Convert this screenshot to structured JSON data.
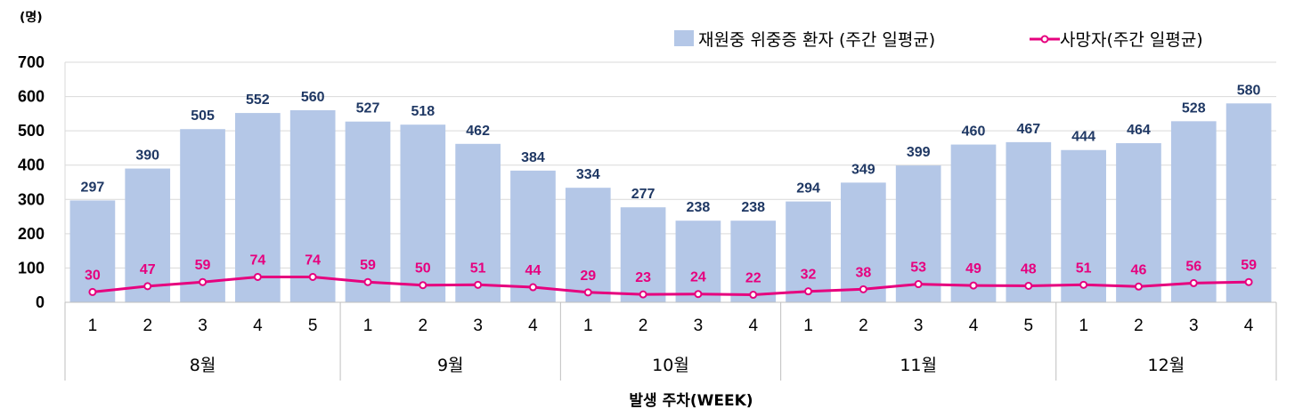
{
  "chart_data": {
    "type": "bar",
    "unit_label": "(명)",
    "xlabel": "발생 주차(WEEK)",
    "ylim": [
      0,
      700
    ],
    "yticks": [
      "0",
      "100",
      "200",
      "300",
      "400",
      "500",
      "600",
      "700"
    ],
    "grid": true,
    "legend_position": "top-right",
    "categories": [
      "1",
      "2",
      "3",
      "4",
      "5",
      "1",
      "2",
      "3",
      "4",
      "1",
      "2",
      "3",
      "4",
      "1",
      "2",
      "3",
      "4",
      "5",
      "1",
      "2",
      "3",
      "4"
    ],
    "groups": [
      {
        "label": "8월",
        "count": 5
      },
      {
        "label": "9월",
        "count": 4
      },
      {
        "label": "10월",
        "count": 4
      },
      {
        "label": "11월",
        "count": 5
      },
      {
        "label": "12월",
        "count": 4
      }
    ],
    "series": [
      {
        "name": "재원중 위중증 환자 (주간 일평균)",
        "type": "bar",
        "color": "#B4C7E7",
        "label_color": "#1F3864",
        "values": [
          297,
          390,
          505,
          552,
          560,
          527,
          518,
          462,
          384,
          334,
          277,
          238,
          238,
          294,
          349,
          399,
          460,
          467,
          444,
          464,
          528,
          580
        ]
      },
      {
        "name": "사망자(주간 일평균)",
        "type": "line",
        "color": "#E6007E",
        "label_color": "#E6007E",
        "values": [
          30,
          47,
          59,
          74,
          74,
          59,
          50,
          51,
          44,
          29,
          23,
          24,
          22,
          32,
          38,
          53,
          49,
          48,
          51,
          46,
          56,
          59
        ]
      }
    ]
  }
}
